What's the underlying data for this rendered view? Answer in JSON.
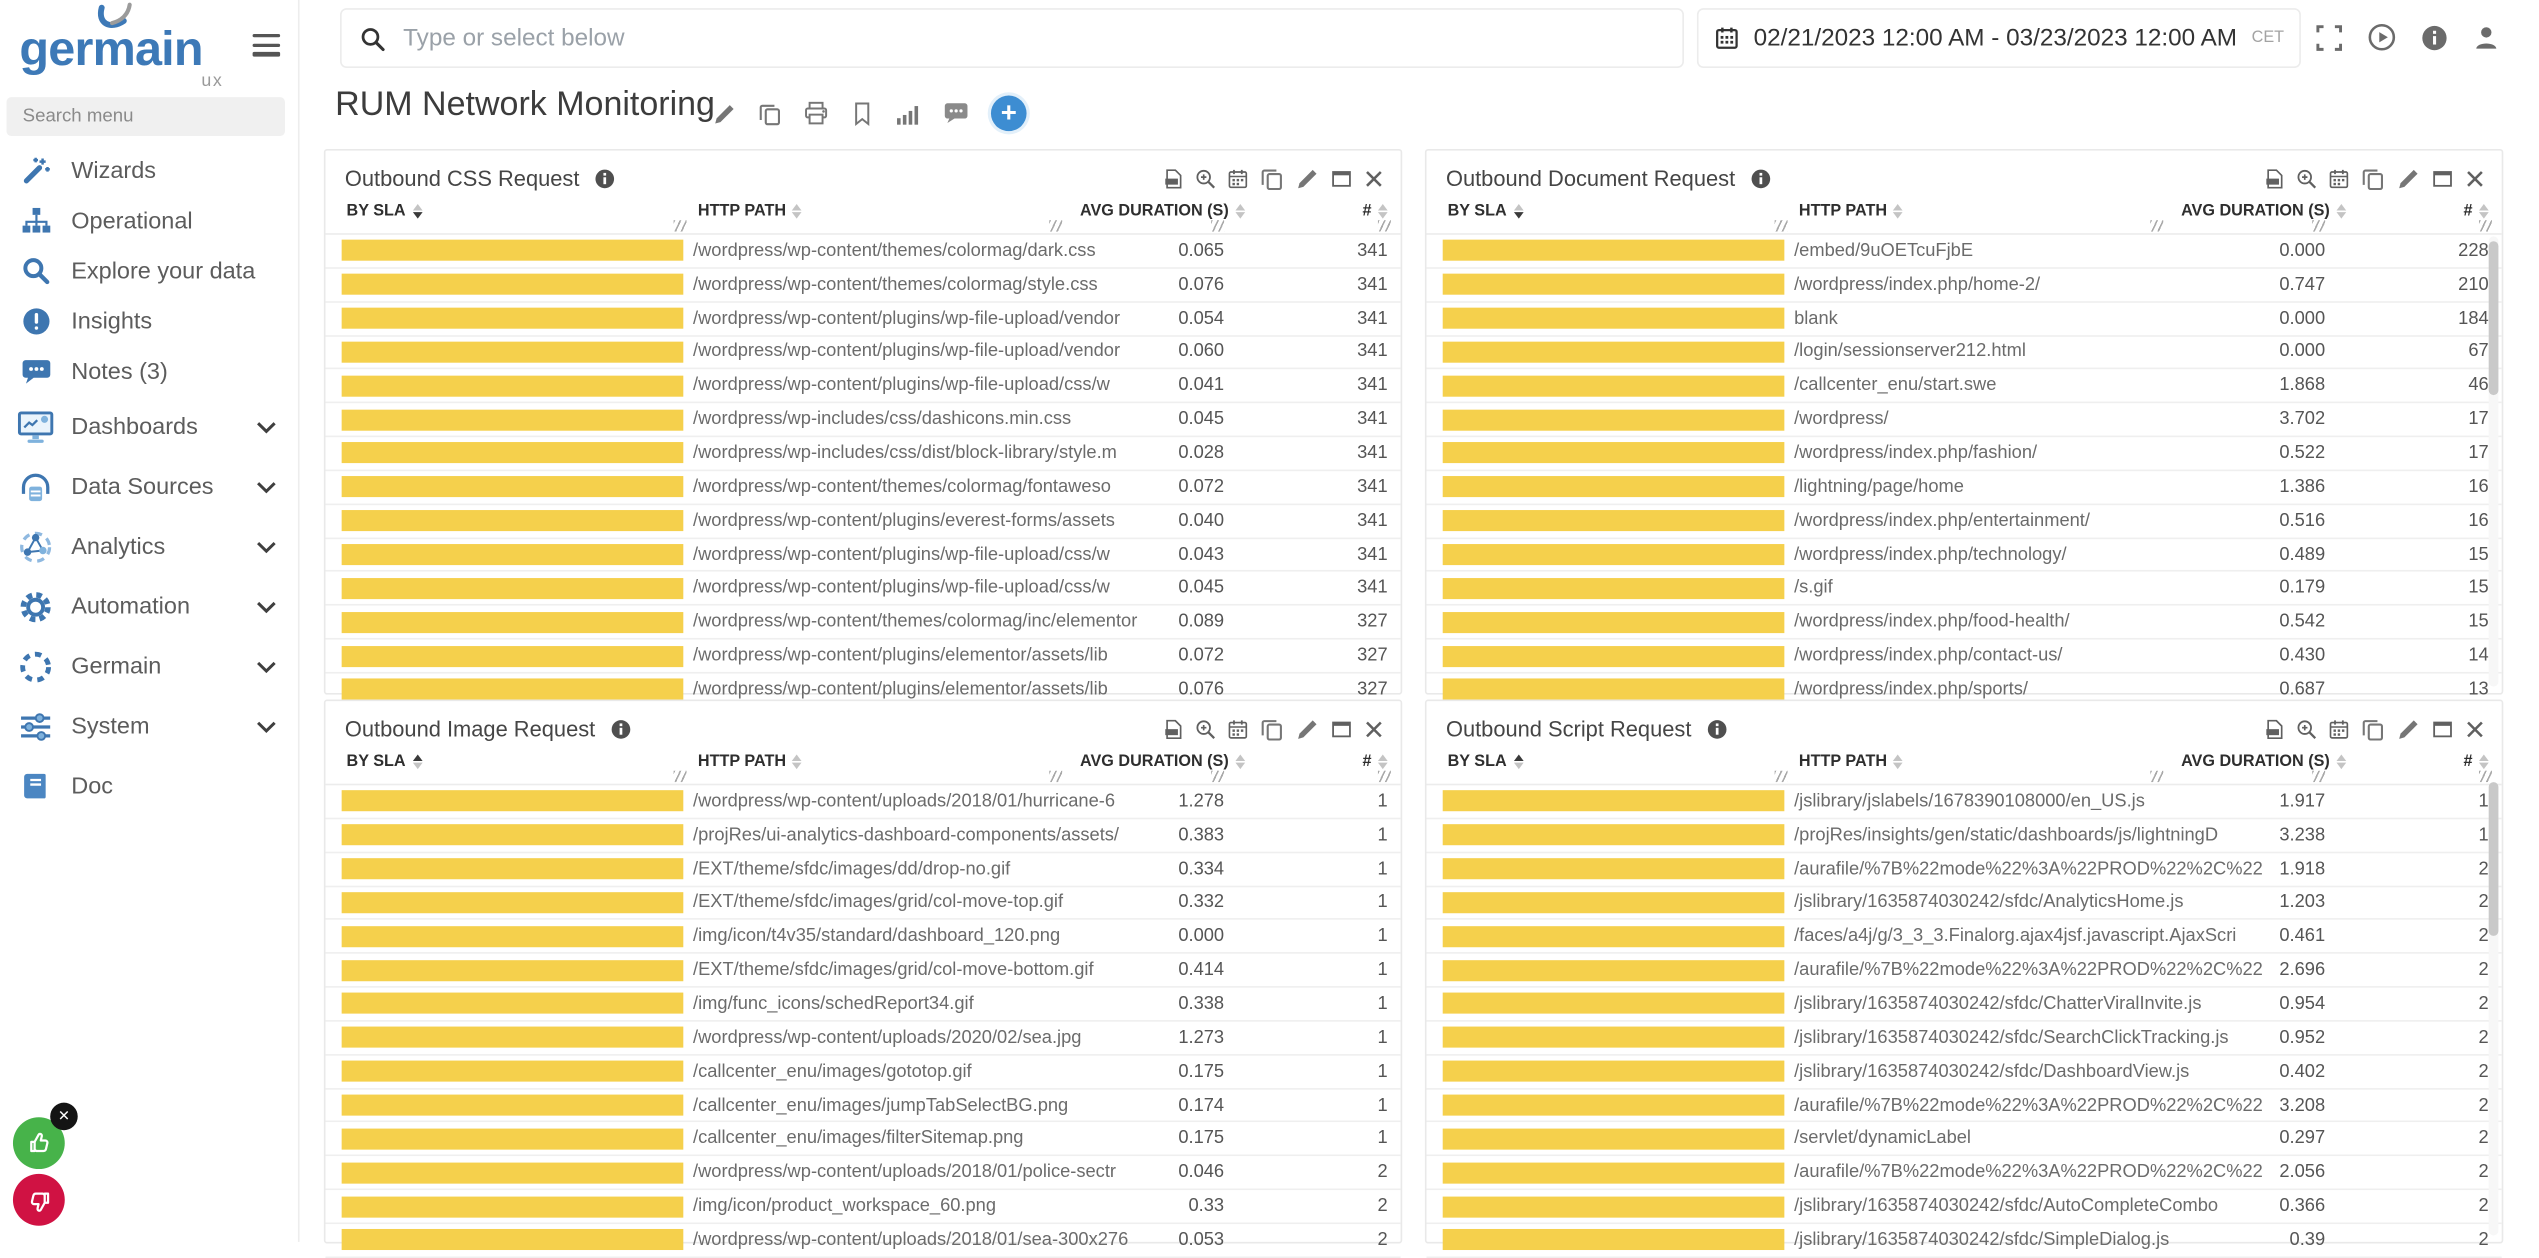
{
  "brand": {
    "name": "germain",
    "suffix": "ux"
  },
  "sidebar": {
    "search_placeholder": "Search menu",
    "items": [
      {
        "label": "Wizards",
        "icon": "wand",
        "expandable": false
      },
      {
        "label": "Operational",
        "icon": "sitemap",
        "expandable": false
      },
      {
        "label": "Explore your data",
        "icon": "search-blue",
        "expandable": false
      },
      {
        "label": "Insights",
        "icon": "insight",
        "expandable": false
      },
      {
        "label": "Notes (3)",
        "icon": "notes",
        "expandable": false
      },
      {
        "label": "Dashboards",
        "icon": "dashboards",
        "expandable": true
      },
      {
        "label": "Data Sources",
        "icon": "datasources",
        "expandable": true
      },
      {
        "label": "Analytics",
        "icon": "analytics",
        "expandable": true
      },
      {
        "label": "Automation",
        "icon": "automation",
        "expandable": true
      },
      {
        "label": "Germain",
        "icon": "germain-ring",
        "expandable": true
      },
      {
        "label": "System",
        "icon": "system",
        "expandable": true
      },
      {
        "label": "Doc",
        "icon": "doc",
        "expandable": false
      }
    ]
  },
  "topbar": {
    "search_placeholder": "Type or select below",
    "date_range": "02/21/2023 12:00 AM - 03/23/2023 12:00 AM",
    "timezone": "CET",
    "icons": [
      "fullscreen",
      "play",
      "info",
      "user"
    ]
  },
  "page": {
    "title": "RUM Network Monitoring",
    "toolbar_icons": [
      "edit",
      "copy",
      "print",
      "bookmark",
      "stats",
      "comment"
    ],
    "add_label": "+"
  },
  "table": {
    "columns": [
      "BY SLA",
      "HTTP PATH",
      "AVG DURATION (S)",
      "#"
    ]
  },
  "panel_toolbar_icons": [
    "export-csv",
    "zoom",
    "calendar",
    "copy",
    "edit",
    "window",
    "close"
  ],
  "panels": [
    {
      "title": "Outbound CSS Request",
      "sort": "desc",
      "rows": [
        [
          "/wordpress/wp-content/themes/colormag/dark.css",
          "0.065",
          "341"
        ],
        [
          "/wordpress/wp-content/themes/colormag/style.css",
          "0.076",
          "341"
        ],
        [
          "/wordpress/wp-content/plugins/wp-file-upload/vendor",
          "0.054",
          "341"
        ],
        [
          "/wordpress/wp-content/plugins/wp-file-upload/vendor",
          "0.060",
          "341"
        ],
        [
          "/wordpress/wp-content/plugins/wp-file-upload/css/w",
          "0.041",
          "341"
        ],
        [
          "/wordpress/wp-includes/css/dashicons.min.css",
          "0.045",
          "341"
        ],
        [
          "/wordpress/wp-includes/css/dist/block-library/style.m",
          "0.028",
          "341"
        ],
        [
          "/wordpress/wp-content/themes/colormag/fontaweso",
          "0.072",
          "341"
        ],
        [
          "/wordpress/wp-content/plugins/everest-forms/assets",
          "0.040",
          "341"
        ],
        [
          "/wordpress/wp-content/plugins/wp-file-upload/css/w",
          "0.043",
          "341"
        ],
        [
          "/wordpress/wp-content/plugins/wp-file-upload/css/w",
          "0.045",
          "341"
        ],
        [
          "/wordpress/wp-content/themes/colormag/inc/elementor",
          "0.089",
          "327"
        ],
        [
          "/wordpress/wp-content/plugins/elementor/assets/lib",
          "0.072",
          "327"
        ],
        [
          "/wordpress/wp-content/plugins/elementor/assets/lib",
          "0.076",
          "327"
        ]
      ]
    },
    {
      "title": "Outbound Document Request",
      "sort": "desc",
      "rows": [
        [
          "/embed/9uOETcuFjbE",
          "0.000",
          "228"
        ],
        [
          "/wordpress/index.php/home-2/",
          "0.747",
          "210"
        ],
        [
          "blank",
          "0.000",
          "184"
        ],
        [
          "/login/sessionserver212.html",
          "0.000",
          "67"
        ],
        [
          "/callcenter_enu/start.swe",
          "1.868",
          "46"
        ],
        [
          "/wordpress/",
          "3.702",
          "17"
        ],
        [
          "/wordpress/index.php/fashion/",
          "0.522",
          "17"
        ],
        [
          "/lightning/page/home",
          "1.386",
          "16"
        ],
        [
          "/wordpress/index.php/entertainment/",
          "0.516",
          "16"
        ],
        [
          "/wordpress/index.php/technology/",
          "0.489",
          "15"
        ],
        [
          "/s.gif",
          "0.179",
          "15"
        ],
        [
          "/wordpress/index.php/food-health/",
          "0.542",
          "15"
        ],
        [
          "/wordpress/index.php/contact-us/",
          "0.430",
          "14"
        ],
        [
          "/wordpress/index.php/sports/",
          "0.687",
          "13"
        ]
      ]
    },
    {
      "title": "Outbound Image Request",
      "sort": "asc",
      "rows": [
        [
          "/wordpress/wp-content/uploads/2018/01/hurricane-6",
          "1.278",
          "1"
        ],
        [
          "/projRes/ui-analytics-dashboard-components/assets/",
          "0.383",
          "1"
        ],
        [
          "/EXT/theme/sfdc/images/dd/drop-no.gif",
          "0.334",
          "1"
        ],
        [
          "/EXT/theme/sfdc/images/grid/col-move-top.gif",
          "0.332",
          "1"
        ],
        [
          "/img/icon/t4v35/standard/dashboard_120.png",
          "0.000",
          "1"
        ],
        [
          "/EXT/theme/sfdc/images/grid/col-move-bottom.gif",
          "0.414",
          "1"
        ],
        [
          "/img/func_icons/schedReport34.gif",
          "0.338",
          "1"
        ],
        [
          "/wordpress/wp-content/uploads/2020/02/sea.jpg",
          "1.273",
          "1"
        ],
        [
          "/callcenter_enu/images/gototop.gif",
          "0.175",
          "1"
        ],
        [
          "/callcenter_enu/images/jumpTabSelectBG.png",
          "0.174",
          "1"
        ],
        [
          "/callcenter_enu/images/filterSitemap.png",
          "0.175",
          "1"
        ],
        [
          "/wordpress/wp-content/uploads/2018/01/police-sectr",
          "0.046",
          "2"
        ],
        [
          "/img/icon/product_workspace_60.png",
          "0.33",
          "2"
        ],
        [
          "/wordpress/wp-content/uploads/2018/01/sea-300x276",
          "0.053",
          "2"
        ]
      ]
    },
    {
      "title": "Outbound Script Request",
      "sort": "asc",
      "rows": [
        [
          "/jslibrary/jslabels/1678390108000/en_US.js",
          "1.917",
          "1"
        ],
        [
          "/projRes/insights/gen/static/dashboards/js/lightningD",
          "3.238",
          "1"
        ],
        [
          "/aurafile/%7B%22mode%22%3A%22PROD%22%2C%22",
          "1.918",
          "2"
        ],
        [
          "/jslibrary/1635874030242/sfdc/AnalyticsHome.js",
          "1.203",
          "2"
        ],
        [
          "/faces/a4j/g/3_3_3.Finalorg.ajax4jsf.javascript.AjaxScri",
          "0.461",
          "2"
        ],
        [
          "/aurafile/%7B%22mode%22%3A%22PROD%22%2C%22",
          "2.696",
          "2"
        ],
        [
          "/jslibrary/1635874030242/sfdc/ChatterViralInvite.js",
          "0.954",
          "2"
        ],
        [
          "/jslibrary/1635874030242/sfdc/SearchClickTracking.js",
          "0.952",
          "2"
        ],
        [
          "/jslibrary/1635874030242/sfdc/DashboardView.js",
          "0.402",
          "2"
        ],
        [
          "/aurafile/%7B%22mode%22%3A%22PROD%22%2C%22",
          "3.208",
          "2"
        ],
        [
          "/servlet/dynamicLabel",
          "0.297",
          "2"
        ],
        [
          "/aurafile/%7B%22mode%22%3A%22PROD%22%2C%22",
          "2.056",
          "2"
        ],
        [
          "/jslibrary/1635874030242/sfdc/AutoCompleteCombo",
          "0.366",
          "2"
        ],
        [
          "/jslibrary/1635874030242/sfdc/SimpleDialog.js",
          "0.39",
          "2"
        ]
      ]
    }
  ],
  "feedback": {
    "like": "thumbs-up",
    "dislike": "thumbs-down",
    "dismiss": "x"
  },
  "colors": {
    "accent_blue": "#3d8dd2",
    "bar_yellow": "#f5d04c",
    "like_green": "#47b34a",
    "dislike_red": "#d01243"
  }
}
